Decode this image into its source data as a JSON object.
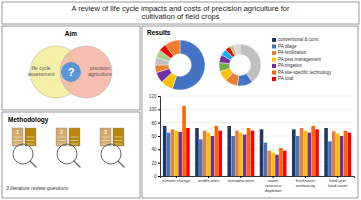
{
  "chart_data": [
    {
      "type": "banner",
      "title": "A review of life cycle impacts and costs of precision agriculture for\ncultivation of field crops"
    },
    {
      "type": "venn",
      "title": "Aim",
      "annotations": [
        "life cycle\nassessment",
        "precision\nagriculture",
        "?"
      ],
      "colors": [
        "#f5f0a8",
        "#f5b8a8",
        "#4a90d9"
      ]
    },
    {
      "type": "icons",
      "title": "Methodology",
      "annotations": [
        "1",
        "2",
        "3",
        "3 literature review questions"
      ]
    },
    {
      "type": "donut",
      "title": "Results",
      "values": [
        55,
        8,
        7,
        5,
        5,
        5,
        5,
        10
      ],
      "colors": [
        "#4472c4",
        "#ffc000",
        "#7030a0",
        "#ed7d31",
        "#c0c0c0",
        "#a9d18e",
        "#ff0000",
        "#ed7d31"
      ]
    },
    {
      "type": "donut",
      "values": [
        40,
        12,
        10,
        8,
        7,
        6,
        5,
        4,
        3,
        5
      ],
      "colors": [
        "#c0c0c0",
        "#4472c4",
        "#ed7d31",
        "#ffc000",
        "#70ad47",
        "#7030a0",
        "#00b0f0",
        "#ff0000",
        "#a9d18e",
        "#d9d9d9"
      ]
    },
    {
      "type": "bar",
      "categories": [
        "climate change",
        "acidification",
        "eutrophication",
        "water\nresource\ndepletion",
        "freshwater\necotoxicity",
        "land use/\nland cover"
      ],
      "series": [
        {
          "name": "conventional & conv.",
          "color": "#1f3864",
          "values": [
            75,
            72,
            75,
            70,
            70,
            72
          ]
        },
        {
          "name": "PA tillage",
          "color": "#4472c4",
          "values": [
            65,
            55,
            60,
            50,
            60,
            52
          ]
        },
        {
          "name": "PA fertilization",
          "color": "#ed7d31",
          "values": [
            70,
            68,
            68,
            38,
            72,
            67
          ]
        },
        {
          "name": "PA pest management",
          "color": "#ffc000",
          "values": [
            68,
            65,
            65,
            35,
            68,
            64
          ]
        },
        {
          "name": "PA irrigation",
          "color": "#7030a0",
          "values": [
            66,
            60,
            62,
            32,
            65,
            60
          ]
        },
        {
          "name": "PA site-specific technology",
          "color": "#ff6600",
          "values": [
            105,
            75,
            72,
            42,
            75,
            68
          ]
        },
        {
          "name": "PA total",
          "color": "#ff0000",
          "values": [
            72,
            68,
            68,
            38,
            70,
            65
          ]
        }
      ],
      "ylim": [
        0,
        120
      ],
      "yticks": [
        0,
        20,
        40,
        60,
        80,
        100,
        120
      ],
      "grid": true
    }
  ]
}
